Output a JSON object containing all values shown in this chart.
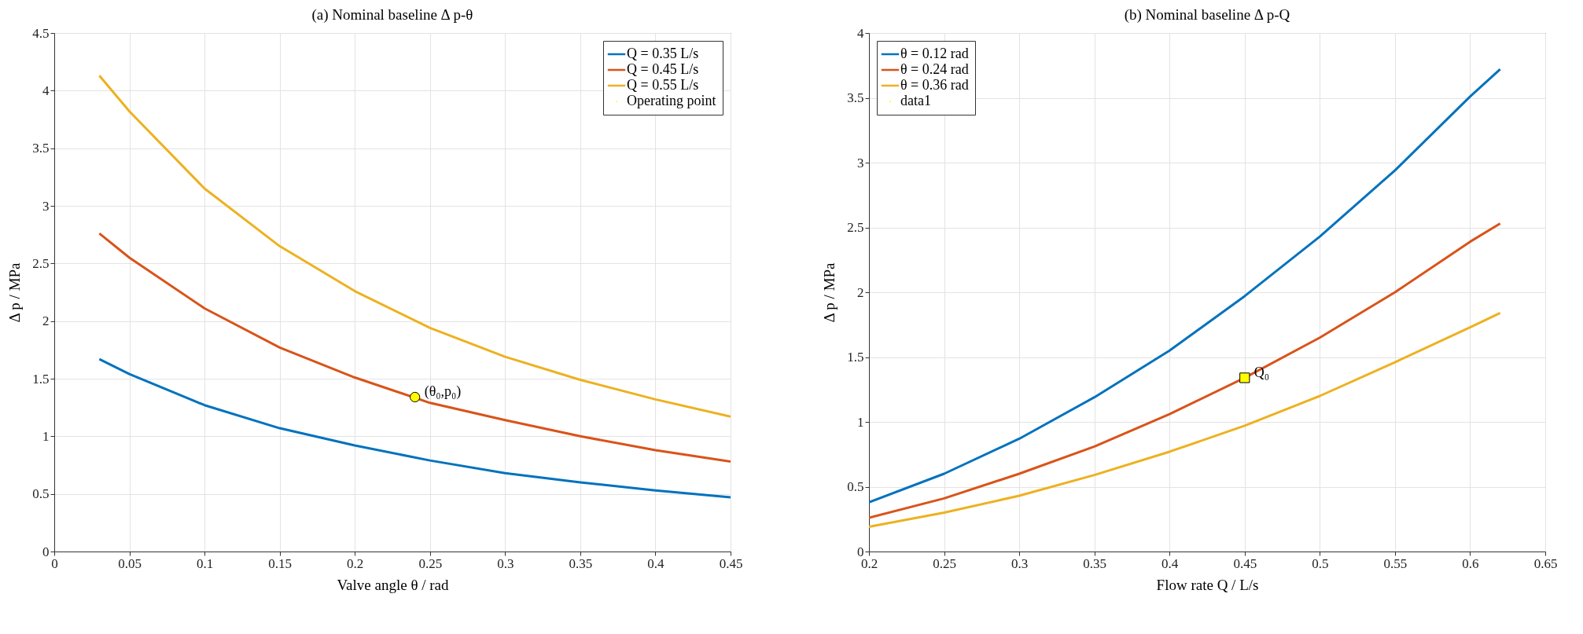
{
  "chart_data": [
    {
      "type": "line",
      "title": "(a) Nominal baseline Δ p-θ",
      "xlabel": "Valve angle θ / rad",
      "ylabel": "Δ p / MPa",
      "x": [
        0.03,
        0.05,
        0.1,
        0.15,
        0.2,
        0.25,
        0.3,
        0.35,
        0.4,
        0.45
      ],
      "series": [
        {
          "name": "Q = 0.35 L/s",
          "color": "#0072bd",
          "values": [
            1.67,
            1.54,
            1.27,
            1.07,
            0.92,
            0.79,
            0.68,
            0.6,
            0.53,
            0.47
          ]
        },
        {
          "name": "Q = 0.45 L/s",
          "color": "#d95319",
          "values": [
            2.76,
            2.55,
            2.11,
            1.77,
            1.51,
            1.29,
            1.14,
            1.0,
            0.88,
            0.78
          ]
        },
        {
          "name": "Q = 0.55 L/s",
          "color": "#edb120",
          "values": [
            4.13,
            3.82,
            3.15,
            2.65,
            2.26,
            1.94,
            1.69,
            1.49,
            1.32,
            1.17
          ]
        },
        {
          "name": "Operating point",
          "type": "scatter",
          "color": "#ffff00",
          "marker": "circle",
          "x": [
            0.24
          ],
          "values": [
            1.34
          ]
        }
      ],
      "xlim": [
        0,
        0.45
      ],
      "ylim": [
        0,
        4.5
      ],
      "xticks": [
        0,
        0.05,
        0.1,
        0.15,
        0.2,
        0.25,
        0.3,
        0.35,
        0.4,
        0.45
      ],
      "yticks": [
        0,
        0.5,
        1,
        1.5,
        2,
        2.5,
        3,
        3.5,
        4,
        4.5
      ],
      "grid": true,
      "legend": "top right",
      "annotations": [
        {
          "text": "(θ₀,p₀)",
          "x": 0.24,
          "y": 1.34
        }
      ]
    },
    {
      "type": "line",
      "title": "(b) Nominal baseline Δ p-Q",
      "xlabel": "Flow rate Q / L/s",
      "ylabel": "Δ p / MPa",
      "x": [
        0.2,
        0.25,
        0.3,
        0.35,
        0.4,
        0.45,
        0.5,
        0.55,
        0.6,
        0.62
      ],
      "series": [
        {
          "name": "θ = 0.12 rad",
          "color": "#0072bd",
          "values": [
            0.38,
            0.6,
            0.87,
            1.19,
            1.55,
            1.97,
            2.43,
            2.94,
            3.51,
            3.72
          ]
        },
        {
          "name": "θ = 0.24 rad",
          "color": "#d95319",
          "values": [
            0.26,
            0.41,
            0.6,
            0.81,
            1.06,
            1.34,
            1.65,
            2.0,
            2.39,
            2.53
          ]
        },
        {
          "name": "θ = 0.36 rad",
          "color": "#edb120",
          "values": [
            0.19,
            0.3,
            0.43,
            0.59,
            0.77,
            0.97,
            1.2,
            1.46,
            1.73,
            1.84
          ]
        },
        {
          "name": "data1",
          "type": "scatter",
          "color": "#ffff00",
          "marker": "square",
          "x": [
            0.45
          ],
          "values": [
            1.34
          ]
        }
      ],
      "xlim": [
        0.2,
        0.65
      ],
      "ylim": [
        0,
        4
      ],
      "xticks": [
        0.2,
        0.25,
        0.3,
        0.35,
        0.4,
        0.45,
        0.5,
        0.55,
        0.6,
        0.65
      ],
      "yticks": [
        0,
        0.5,
        1,
        1.5,
        2,
        2.5,
        3,
        3.5,
        4
      ],
      "grid": true,
      "legend": "top left",
      "annotations": [
        {
          "text": "Q₀",
          "x": 0.45,
          "y": 1.34
        }
      ]
    }
  ]
}
